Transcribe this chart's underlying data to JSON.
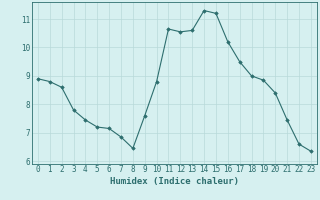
{
  "x": [
    0,
    1,
    2,
    3,
    4,
    5,
    6,
    7,
    8,
    9,
    10,
    11,
    12,
    13,
    14,
    15,
    16,
    17,
    18,
    19,
    20,
    21,
    22,
    23
  ],
  "y": [
    8.9,
    8.8,
    8.6,
    7.8,
    7.45,
    7.2,
    7.15,
    6.85,
    6.45,
    7.6,
    8.8,
    10.65,
    10.55,
    10.6,
    11.3,
    11.2,
    10.2,
    9.5,
    9.0,
    8.85,
    8.4,
    7.45,
    6.6,
    6.35
  ],
  "xlim": [
    -0.5,
    23.5
  ],
  "ylim": [
    5.9,
    11.6
  ],
  "yticks": [
    6,
    7,
    8,
    9,
    10,
    11
  ],
  "xticks": [
    0,
    1,
    2,
    3,
    4,
    5,
    6,
    7,
    8,
    9,
    10,
    11,
    12,
    13,
    14,
    15,
    16,
    17,
    18,
    19,
    20,
    21,
    22,
    23
  ],
  "xlabel": "Humidex (Indice chaleur)",
  "line_color": "#2d6e6e",
  "marker": "D",
  "marker_size": 1.8,
  "bg_color": "#d6f0f0",
  "grid_color": "#b8dada",
  "tick_color": "#2d6e6e",
  "label_color": "#2d6e6e",
  "xlabel_fontsize": 6.5,
  "tick_fontsize": 5.5,
  "linewidth": 0.8
}
